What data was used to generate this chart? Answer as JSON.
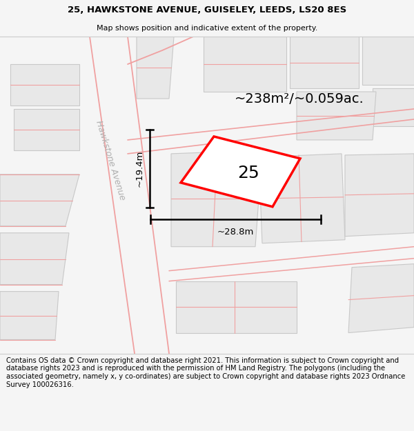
{
  "title_line1": "25, HAWKSTONE AVENUE, GUISELEY, LEEDS, LS20 8ES",
  "title_line2": "Map shows position and indicative extent of the property.",
  "footer_text": "Contains OS data © Crown copyright and database right 2021. This information is subject to Crown copyright and database rights 2023 and is reproduced with the permission of HM Land Registry. The polygons (including the associated geometry, namely x, y co-ordinates) are subject to Crown copyright and database rights 2023 Ordnance Survey 100026316.",
  "area_label": "~238m²/~0.059ac.",
  "width_label": "~28.8m",
  "height_label": "~19.4m",
  "property_number": "25",
  "bg_color": "#f5f5f5",
  "plot_fill": "#e8e8e8",
  "plot_edge": "#c8c8c8",
  "road_color": "#f0a0a0",
  "highlight_color": "#ff0000",
  "street_label": "Hawkstone Avenue",
  "title_fontsize": 9.5,
  "footer_fontsize": 7.2
}
